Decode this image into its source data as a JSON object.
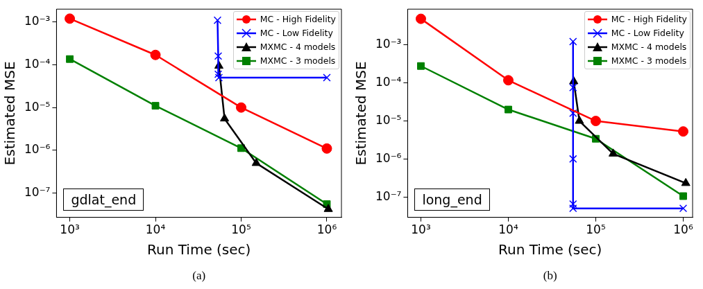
{
  "chart_data": [
    {
      "type": "line",
      "xlabel": "Run Time (sec)",
      "ylabel": "Estimated MSE",
      "log": "xy",
      "grid": false,
      "legend": "top right",
      "xlim": [
        700,
        1480000
      ],
      "ylim": [
        2.7e-08,
        0.002
      ],
      "xticks": [
        {
          "value": 1000,
          "label": "10³"
        },
        {
          "value": 10000,
          "label": "10⁴"
        },
        {
          "value": 100000,
          "label": "10⁵"
        },
        {
          "value": 1000000,
          "label": "10⁶"
        }
      ],
      "yticks": [
        {
          "value": 1e-07,
          "label": "10⁻⁷"
        },
        {
          "value": 1e-06,
          "label": "10⁻⁶"
        },
        {
          "value": 1e-05,
          "label": "10⁻⁵"
        },
        {
          "value": 0.0001,
          "label": "10⁻⁴"
        },
        {
          "value": 0.001,
          "label": "10⁻³"
        }
      ],
      "annotations": [
        "gdlat_end",
        "(a)"
      ],
      "series": [
        {
          "name": "MC - High Fidelity",
          "color": "#ff0000",
          "marker": "circle",
          "x": [
            1000,
            10000,
            100000,
            1000000
          ],
          "values": [
            0.0012,
            0.00017,
            1e-05,
            1.1e-06
          ]
        },
        {
          "name": "MC - Low Fidelity",
          "color": "#0000ff",
          "marker": "cross",
          "x": [
            53000,
            54000,
            54000,
            55000,
            1000000
          ],
          "values": [
            0.0011,
            0.00016,
            6e-05,
            5e-05,
            5e-05
          ]
        },
        {
          "name": "MXMC - 4 models",
          "color": "#000000",
          "marker": "triangle",
          "x": [
            55000,
            64000,
            150000,
            1040000
          ],
          "values": [
            9.4e-05,
            5.5e-06,
            5e-07,
            4.2e-08
          ]
        },
        {
          "name": "MXMC - 3 models",
          "color": "#008000",
          "marker": "square",
          "x": [
            1000,
            10000,
            100000,
            1000000
          ],
          "values": [
            0.000136,
            1.1e-05,
            1.12e-06,
            5.5e-08
          ]
        }
      ]
    },
    {
      "type": "line",
      "xlabel": "Run Time (sec)",
      "ylabel": "Estimated MSE",
      "log": "xy",
      "grid": false,
      "legend": "top right",
      "xlim": [
        706,
        1280000
      ],
      "ylim": [
        2.9e-08,
        0.0088
      ],
      "xticks": [
        {
          "value": 1000,
          "label": "10³"
        },
        {
          "value": 10000,
          "label": "10⁴"
        },
        {
          "value": 100000,
          "label": "10⁵"
        },
        {
          "value": 1000000,
          "label": "10⁶"
        }
      ],
      "yticks": [
        {
          "value": 1e-07,
          "label": "10⁻⁷"
        },
        {
          "value": 1e-06,
          "label": "10⁻⁶"
        },
        {
          "value": 1e-05,
          "label": "10⁻⁵"
        },
        {
          "value": 0.0001,
          "label": "10⁻⁴"
        },
        {
          "value": 0.001,
          "label": "10⁻³"
        }
      ],
      "annotations": [
        "long_end",
        "(b)"
      ],
      "series": [
        {
          "name": "MC - High Fidelity",
          "color": "#ff0000",
          "marker": "circle",
          "x": [
            1000,
            10000,
            100000,
            1000000
          ],
          "values": [
            0.0049,
            0.000118,
            1e-05,
            5.3e-06
          ]
        },
        {
          "name": "MC - Low Fidelity",
          "color": "#0000ff",
          "marker": "cross",
          "x": [
            55000,
            55000,
            55000,
            55000,
            55000,
            55000,
            1000000
          ],
          "values": [
            0.00123,
            7.6e-05,
            1.6e-05,
            1e-06,
            6.5e-08,
            5e-08,
            5e-08
          ]
        },
        {
          "name": "MXMC - 4 models",
          "color": "#000000",
          "marker": "triangle",
          "x": [
            56000,
            65000,
            158000,
            1070000
          ],
          "values": [
            0.00011,
            1e-05,
            1.37e-06,
            2.3e-07
          ]
        },
        {
          "name": "MXMC - 3 models",
          "color": "#008000",
          "marker": "square",
          "x": [
            1000,
            10000,
            100000,
            1000000
          ],
          "values": [
            0.00028,
            2e-05,
            3.4e-06,
            1.05e-07
          ]
        }
      ]
    }
  ]
}
